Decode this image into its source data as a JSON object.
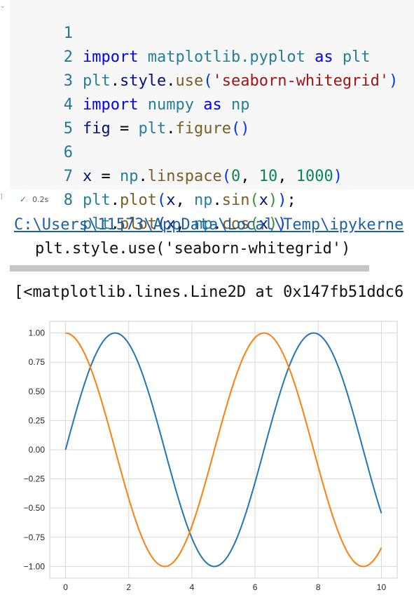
{
  "cell": {
    "collapse_icon": "chevron-down-icon",
    "lines": [
      {
        "n": "1"
      },
      {
        "n": "2"
      },
      {
        "n": "3"
      },
      {
        "n": "4"
      },
      {
        "n": "5"
      },
      {
        "n": "6"
      },
      {
        "n": "7"
      },
      {
        "n": "8"
      }
    ],
    "tokens": {
      "import": "import",
      "as": "as",
      "matplotlib_pyplot": "matplotlib.pyplot",
      "plt": "plt",
      "style": "style",
      "use": "use",
      "style_arg": "'seaborn-whitegrid'",
      "numpy": "numpy",
      "np": "np",
      "fig": "fig",
      "figure": "figure",
      "x": "x",
      "linspace": "linspace",
      "zero": "0",
      "ten": "10",
      "thousand": "1000",
      "plot": "plot",
      "sin": "sin",
      "cos": "cos"
    },
    "status": {
      "check_icon": "check-icon",
      "duration": "0.2s"
    }
  },
  "output": {
    "warning_path": "C:\\Users\\11573\\AppData\\Local\\Temp\\ipykerne",
    "warning_code": "plt.style.use('seaborn-whitegrid')",
    "result": "[<matplotlib.lines.Line2D at 0x147fb51ddc6"
  },
  "chart_data": {
    "type": "line",
    "title": "",
    "xlabel": "",
    "ylabel": "",
    "xlim": [
      -0.5,
      10.5
    ],
    "ylim": [
      -1.1,
      1.1
    ],
    "xticks": [
      0,
      2,
      4,
      6,
      8,
      10
    ],
    "yticks": [
      1.0,
      0.75,
      0.5,
      0.25,
      0.0,
      -0.25,
      -0.5,
      -0.75,
      -1.0
    ],
    "ytick_labels": [
      "1.00",
      "0.75",
      "0.50",
      "0.25",
      "0.00",
      "−0.25",
      "−0.50",
      "−0.75",
      "−1.00"
    ],
    "grid": true,
    "x_range": [
      0,
      10
    ],
    "series": [
      {
        "function": "sin",
        "color": "#1f77b4"
      },
      {
        "function": "cos",
        "color": "#ff7f0e"
      }
    ]
  }
}
